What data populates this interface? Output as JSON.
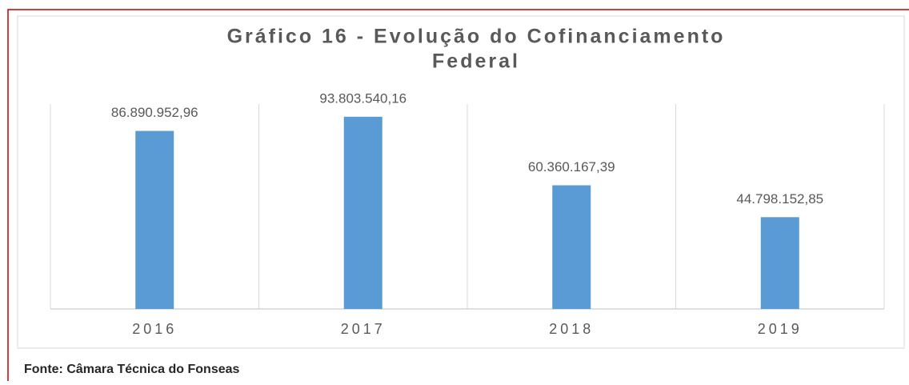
{
  "chart_data": {
    "type": "bar",
    "title": "Gráfico 16 - Evolução do Cofinanciamento Federal",
    "categories": [
      "2016",
      "2017",
      "2018",
      "2019"
    ],
    "values": [
      86890952.96,
      93803540.16,
      60360167.39,
      44798152.85
    ],
    "value_labels": [
      "86.890.952,96",
      "93.803.540,16",
      "60.360.167,39",
      "44.798.152,85"
    ],
    "color": "#5b9bd5",
    "ylim": [
      0,
      100000000
    ]
  },
  "source": "Fonte: Câmara Técnica do Fonseas"
}
